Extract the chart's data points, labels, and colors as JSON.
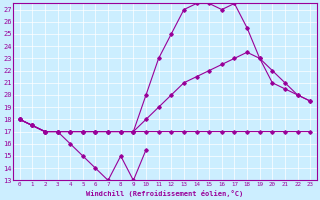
{
  "xlabel": "Windchill (Refroidissement éolien,°C)",
  "bg_color": "#cceeff",
  "line_color": "#990099",
  "grid_color": "#ffffff",
  "x_ticks": [
    0,
    1,
    2,
    3,
    4,
    5,
    6,
    7,
    8,
    9,
    10,
    11,
    12,
    13,
    14,
    15,
    16,
    17,
    18,
    19,
    20,
    21,
    22,
    23
  ],
  "y_ticks": [
    13,
    14,
    15,
    16,
    17,
    18,
    19,
    20,
    21,
    22,
    23,
    24,
    25,
    26,
    27
  ],
  "xlim": [
    -0.5,
    23.5
  ],
  "ylim": [
    13,
    27.5
  ],
  "series": [
    {
      "x": [
        0,
        1,
        2,
        3,
        4,
        5,
        6,
        7,
        8,
        9,
        10
      ],
      "y": [
        18,
        17.5,
        17,
        17,
        16,
        15,
        14,
        13,
        15,
        13,
        15.5
      ]
    },
    {
      "x": [
        0,
        1,
        2,
        3,
        4,
        5,
        6,
        7,
        8,
        9,
        10,
        11,
        12,
        13,
        14,
        15,
        16,
        17,
        18,
        19,
        20,
        21,
        22,
        23
      ],
      "y": [
        18,
        17.5,
        17,
        17,
        17,
        17,
        17,
        17,
        17,
        17,
        17,
        17,
        17,
        17,
        17,
        17,
        17,
        17,
        17,
        17,
        17,
        17,
        17,
        17
      ]
    },
    {
      "x": [
        0,
        1,
        2,
        3,
        4,
        5,
        6,
        7,
        8,
        9,
        10,
        11,
        12,
        13,
        14,
        15,
        16,
        17,
        18,
        19,
        20,
        21,
        22,
        23
      ],
      "y": [
        18,
        17.5,
        17,
        17,
        17,
        17,
        17,
        17,
        17,
        17,
        18,
        19,
        20,
        21,
        21.5,
        22,
        22.5,
        23,
        23.5,
        23,
        22,
        21,
        20,
        19.5
      ]
    },
    {
      "x": [
        0,
        1,
        2,
        3,
        4,
        5,
        6,
        7,
        8,
        9,
        10,
        11,
        12,
        13,
        14,
        15,
        16,
        17,
        18,
        19,
        20,
        21,
        22,
        23
      ],
      "y": [
        18,
        17.5,
        17,
        17,
        17,
        17,
        17,
        17,
        17,
        17,
        20,
        23,
        25,
        27,
        27.5,
        27.5,
        27,
        27.5,
        25.5,
        23,
        21,
        20.5,
        20,
        19.5
      ]
    }
  ]
}
